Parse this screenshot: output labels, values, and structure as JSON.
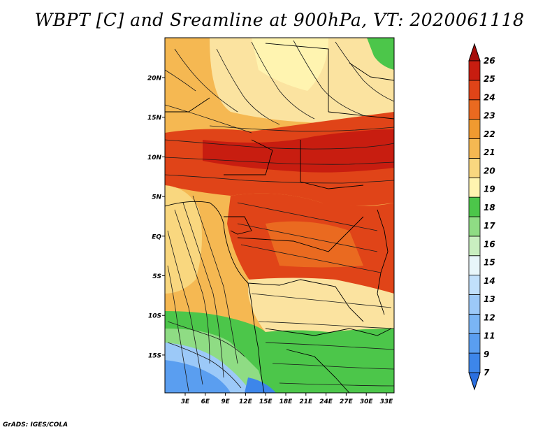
{
  "title": "WBPT [C] and Sreamline at 900hPa, VT: 2020061118",
  "footer": "GrADS: IGES/COLA",
  "map": {
    "lat_ticks": [
      "20N",
      "15N",
      "10N",
      "5N",
      "EQ",
      "5S",
      "10S",
      "15S"
    ],
    "lon_ticks": [
      "3E",
      "6E",
      "9E",
      "12E",
      "15E",
      "18E",
      "21E",
      "24E",
      "27E",
      "30E",
      "33E"
    ],
    "variable": "WBPT",
    "units": "C",
    "level": "900hPa",
    "valid_time": "2020061118"
  },
  "colorbar": {
    "labels": [
      "7",
      "9",
      "11",
      "12",
      "13",
      "14",
      "15",
      "16",
      "17",
      "18",
      "19",
      "20",
      "21",
      "22",
      "23",
      "24",
      "25",
      "26"
    ],
    "colors": [
      "#2a6fe0",
      "#3d86ea",
      "#5a9ef0",
      "#7ab5f5",
      "#9cc9f8",
      "#c1e0fb",
      "#e8f6fa",
      "#c9efc0",
      "#8fdc84",
      "#4cc64a",
      "#fff4b0",
      "#f9d77f",
      "#f5b852",
      "#f09a30",
      "#ea6a20",
      "#e04418",
      "#c81d10",
      "#a60d0a"
    ]
  }
}
